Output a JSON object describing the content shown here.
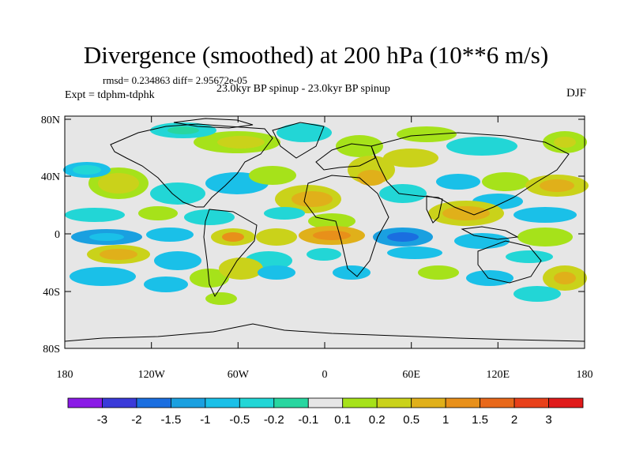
{
  "title": "Divergence (smoothed) at 200 hPa (10**6 m/s)",
  "stats": "rmsd= 0.234863  diff= 2.95672e-05",
  "expt": "Expt = tdphm-tdphk",
  "subtitle": "23.0kyr BP spinup - 23.0kyr BP spinup",
  "season": "DJF",
  "axes": {
    "lat_ticks": [
      "80N",
      "40N",
      "0",
      "40S",
      "80S"
    ],
    "lon_ticks": [
      "180",
      "120W",
      "60W",
      "0",
      "60E",
      "120E",
      "180"
    ]
  },
  "colorbar": {
    "labels": [
      "-3",
      "-2",
      "-1.5",
      "-1",
      "-0.5",
      "-0.2",
      "-0.1",
      "0.1",
      "0.2",
      "0.5",
      "1",
      "1.5",
      "2",
      "3"
    ],
    "colors": [
      "#8a1ae6",
      "#3a3ad9",
      "#1a6ee0",
      "#1aa0e0",
      "#1ac0e8",
      "#22d6d6",
      "#28d6a0",
      "#e6e6e6",
      "#a6e21a",
      "#cad21a",
      "#e0b01a",
      "#e8901a",
      "#e8681a",
      "#e8401a",
      "#e01a1a"
    ]
  },
  "background_color": "#e6e6e6"
}
